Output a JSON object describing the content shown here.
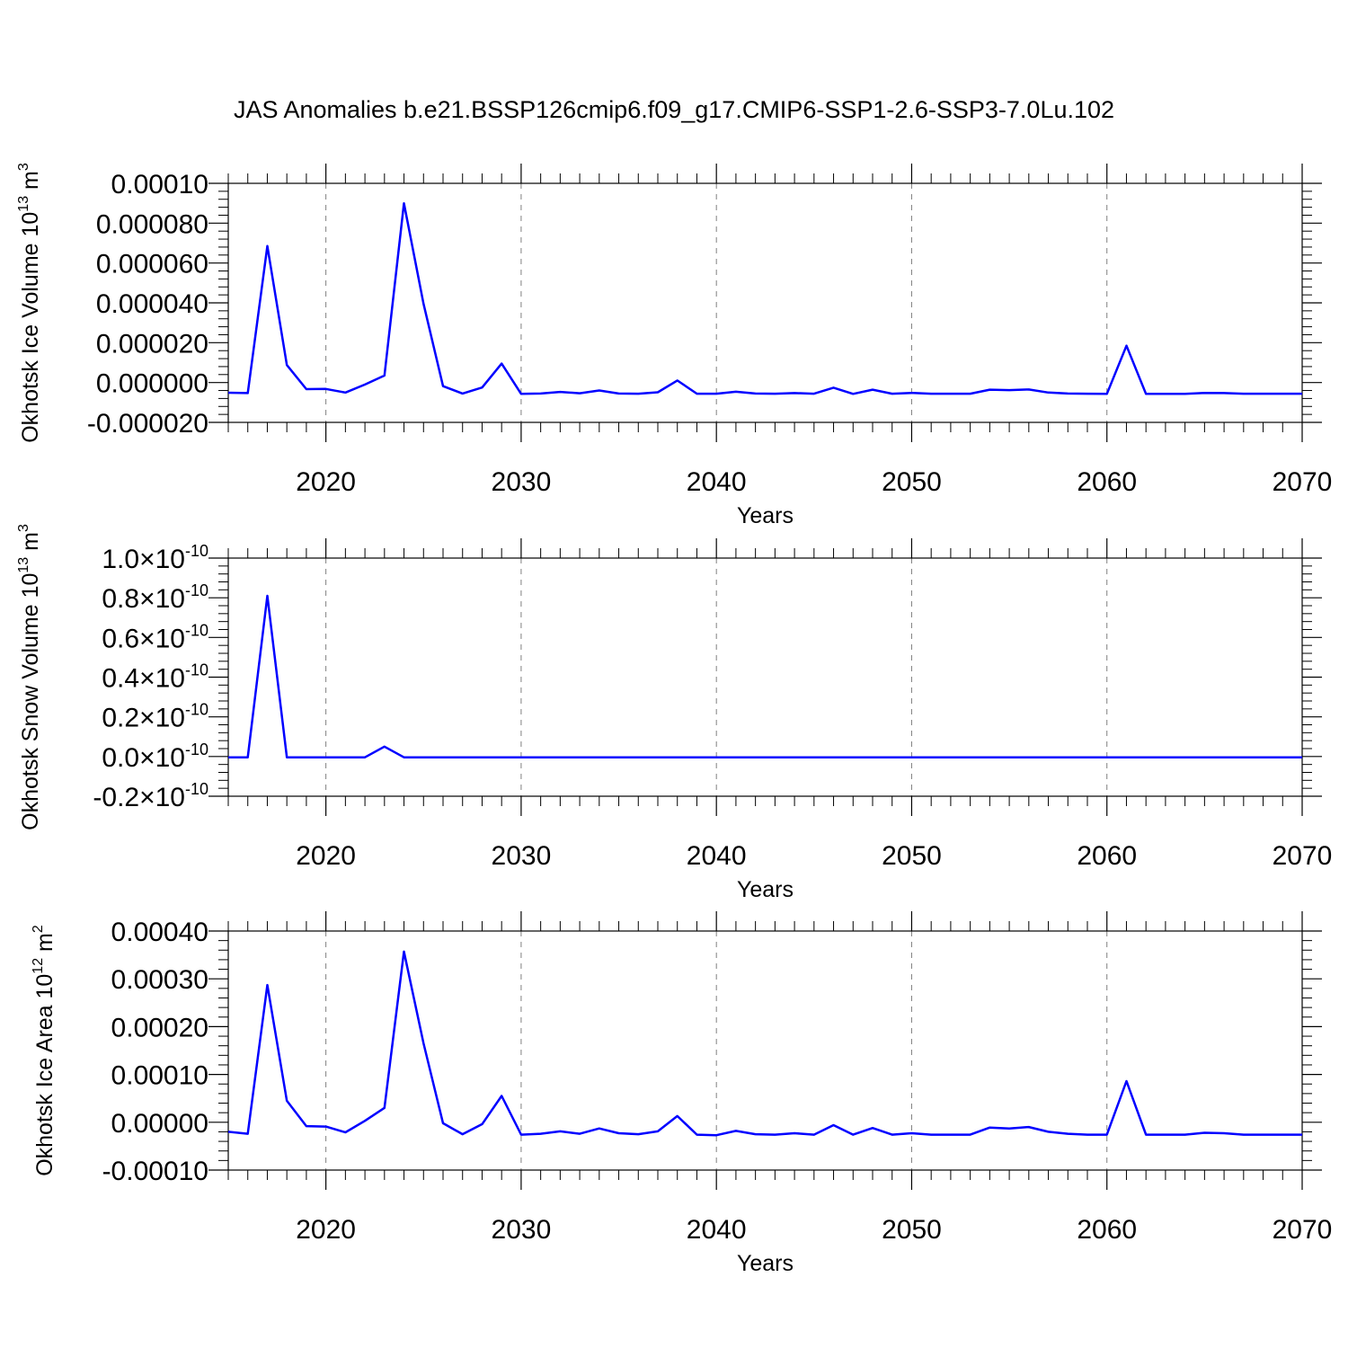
{
  "title": "JAS Anomalies b.e21.BSSP126cmip6.f09_g17.CMIP6-SSP1-2.6-SSP3-7.0Lu.102",
  "line_color": "#0000ff",
  "grid_color": "#808080",
  "chart_data": [
    {
      "type": "line",
      "ylabel": "Okhotsk Ice Volume 10",
      "ylabel_exp": "13",
      "ylabel_unit": " m",
      "ylabel_unit_exp": "3",
      "xlabel": "Years",
      "xlim": [
        2015,
        2070
      ],
      "ylim": [
        -2e-05,
        0.0001
      ],
      "x_ticks": [
        "2020",
        "2030",
        "2040",
        "2050",
        "2060",
        "2070"
      ],
      "y_ticks": [
        "-0.000020",
        "0.000000",
        "0.000020",
        "0.000040",
        "0.000060",
        "0.000080",
        "0.00010"
      ],
      "y_tick_values": [
        -2e-05,
        0,
        2e-05,
        4e-05,
        6e-05,
        8e-05,
        0.0001
      ],
      "x": [
        2015,
        2016,
        2017,
        2018,
        2019,
        2020,
        2021,
        2022,
        2023,
        2024,
        2025,
        2026,
        2027,
        2028,
        2029,
        2030,
        2031,
        2032,
        2033,
        2034,
        2035,
        2036,
        2037,
        2038,
        2039,
        2040,
        2041,
        2042,
        2043,
        2044,
        2045,
        2046,
        2047,
        2048,
        2049,
        2050,
        2051,
        2052,
        2053,
        2054,
        2055,
        2056,
        2057,
        2058,
        2059,
        2060,
        2061,
        2062,
        2063,
        2064,
        2065,
        2066,
        2067,
        2068,
        2069,
        2070
      ],
      "values": [
        -5.1e-06,
        -5.3e-06,
        6.85e-05,
        8.8e-06,
        -3.3e-06,
        -3.2e-06,
        -5e-06,
        -1e-06,
        3.5e-06,
        9e-05,
        3.95e-05,
        -1.8e-06,
        -5.5e-06,
        -2.5e-06,
        9.5e-06,
        -5.7e-06,
        -5.5e-06,
        -4.7e-06,
        -5.4e-06,
        -4e-06,
        -5.5e-06,
        -5.6e-06,
        -4.9e-06,
        1e-06,
        -5.6e-06,
        -5.6e-06,
        -4.6e-06,
        -5.5e-06,
        -5.6e-06,
        -5.3e-06,
        -5.6e-06,
        -2.6e-06,
        -5.7e-06,
        -3.6e-06,
        -5.6e-06,
        -5.2e-06,
        -5.6e-06,
        -5.6e-06,
        -5.6e-06,
        -3.6e-06,
        -3.8e-06,
        -3.5e-06,
        -5e-06,
        -5.5e-06,
        -5.6e-06,
        -5.7e-06,
        1.85e-05,
        -5.7e-06,
        -5.7e-06,
        -5.7e-06,
        -5.2e-06,
        -5.3e-06,
        -5.6e-06,
        -5.6e-06,
        -5.6e-06,
        -5.6e-06
      ]
    },
    {
      "type": "line",
      "ylabel": "Okhotsk Snow Volume 10",
      "ylabel_exp": "13",
      "ylabel_unit": " m",
      "ylabel_unit_exp": "3",
      "xlabel": "Years",
      "xlim": [
        2015,
        2070
      ],
      "ylim": [
        -2e-11,
        1e-10
      ],
      "x_ticks": [
        "2020",
        "2030",
        "2040",
        "2050",
        "2060",
        "2070"
      ],
      "y_ticks": [
        "-0.2",
        "0.0",
        "0.2",
        "0.4",
        "0.6",
        "0.8",
        "1.0"
      ],
      "y_tick_exp": "×10",
      "y_tick_exp_power": "-10",
      "y_tick_values": [
        -2e-11,
        0,
        2e-11,
        4e-11,
        6e-11,
        8e-11,
        1e-10
      ],
      "x": [
        2015,
        2016,
        2017,
        2018,
        2019,
        2020,
        2021,
        2022,
        2023,
        2024,
        2025,
        2026,
        2027,
        2028,
        2029,
        2030,
        2031,
        2032,
        2033,
        2034,
        2035,
        2036,
        2037,
        2038,
        2039,
        2040,
        2041,
        2042,
        2043,
        2044,
        2045,
        2046,
        2047,
        2048,
        2049,
        2050,
        2051,
        2052,
        2053,
        2054,
        2055,
        2056,
        2057,
        2058,
        2059,
        2060,
        2061,
        2062,
        2063,
        2064,
        2065,
        2066,
        2067,
        2068,
        2069,
        2070
      ],
      "values": [
        -4e-13,
        -4e-13,
        8.1e-11,
        -4e-13,
        -4e-13,
        -4e-13,
        -4e-13,
        -4e-13,
        5e-12,
        -4e-13,
        -4e-13,
        -4e-13,
        -4e-13,
        -4e-13,
        -4e-13,
        -4e-13,
        -4e-13,
        -4e-13,
        -4e-13,
        -4e-13,
        -4e-13,
        -4e-13,
        -4e-13,
        -4e-13,
        -4e-13,
        -4e-13,
        -4e-13,
        -4e-13,
        -4e-13,
        -4e-13,
        -4e-13,
        -4e-13,
        -4e-13,
        -4e-13,
        -4e-13,
        -4e-13,
        -4e-13,
        -4e-13,
        -4e-13,
        -4e-13,
        -4e-13,
        -4e-13,
        -4e-13,
        -4e-13,
        -4e-13,
        -4e-13,
        -4e-13,
        -4e-13,
        -4e-13,
        -4e-13,
        -4e-13,
        -4e-13,
        -4e-13,
        -4e-13,
        -4e-13,
        -4e-13
      ]
    },
    {
      "type": "line",
      "ylabel": "Okhotsk Ice Area 10",
      "ylabel_exp": "12",
      "ylabel_unit": " m",
      "ylabel_unit_exp": "2",
      "xlabel": "Years",
      "xlim": [
        2015,
        2070
      ],
      "ylim": [
        -0.0001,
        0.0004
      ],
      "x_ticks": [
        "2020",
        "2030",
        "2040",
        "2050",
        "2060",
        "2070"
      ],
      "y_ticks": [
        "-0.00010",
        "0.00000",
        "0.00010",
        "0.00020",
        "0.00030",
        "0.00040"
      ],
      "y_tick_values": [
        -0.0001,
        0,
        0.0001,
        0.0002,
        0.0003,
        0.0004
      ],
      "x": [
        2015,
        2016,
        2017,
        2018,
        2019,
        2020,
        2021,
        2022,
        2023,
        2024,
        2025,
        2026,
        2027,
        2028,
        2029,
        2030,
        2031,
        2032,
        2033,
        2034,
        2035,
        2036,
        2037,
        2038,
        2039,
        2040,
        2041,
        2042,
        2043,
        2044,
        2045,
        2046,
        2047,
        2048,
        2049,
        2050,
        2051,
        2052,
        2053,
        2054,
        2055,
        2056,
        2057,
        2058,
        2059,
        2060,
        2061,
        2062,
        2063,
        2064,
        2065,
        2066,
        2067,
        2068,
        2069,
        2070
      ],
      "values": [
        -2e-05,
        -2.4e-05,
        0.000287,
        4.5e-05,
        -8e-06,
        -9e-06,
        -2.1e-05,
        3e-06,
        3e-05,
        0.000357,
        0.000165,
        -2e-06,
        -2.5e-05,
        -4e-06,
        5.5e-05,
        -2.6e-05,
        -2.4e-05,
        -1.9e-05,
        -2.4e-05,
        -1.3e-05,
        -2.3e-05,
        -2.5e-05,
        -1.9e-05,
        1.3e-05,
        -2.6e-05,
        -2.7e-05,
        -1.8e-05,
        -2.5e-05,
        -2.6e-05,
        -2.3e-05,
        -2.6e-05,
        -6e-06,
        -2.6e-05,
        -1.2e-05,
        -2.6e-05,
        -2.3e-05,
        -2.6e-05,
        -2.6e-05,
        -2.6e-05,
        -1.1e-05,
        -1.3e-05,
        -1e-05,
        -2e-05,
        -2.4e-05,
        -2.6e-05,
        -2.6e-05,
        8.6e-05,
        -2.6e-05,
        -2.6e-05,
        -2.6e-05,
        -2.2e-05,
        -2.3e-05,
        -2.6e-05,
        -2.6e-05,
        -2.6e-05,
        -2.6e-05
      ]
    }
  ]
}
